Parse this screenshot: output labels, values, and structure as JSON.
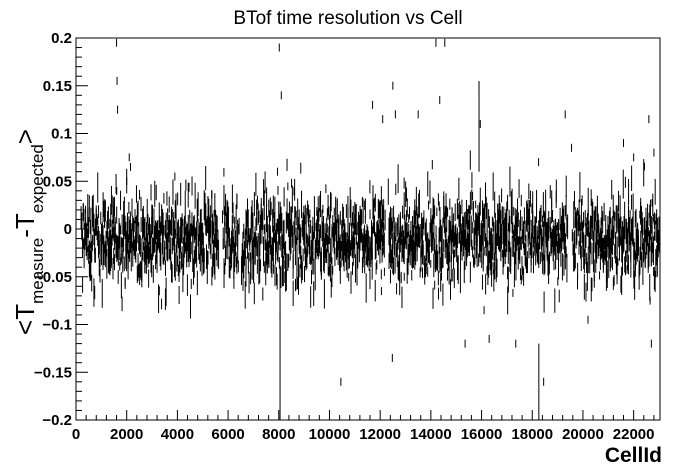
{
  "chart_data": {
    "type": "scatter",
    "title": "BTof time resolution vs Cell",
    "xlabel": "CellId",
    "ylabel": {
      "open": "<T",
      "sub1": "measure",
      "dash": "-T",
      "sub2": "expected",
      "close": ">"
    },
    "xlim": [
      0,
      23040
    ],
    "ylim": [
      -0.2,
      0.2
    ],
    "xticks": [
      "0",
      "2000",
      "4000",
      "6000",
      "8000",
      "10000",
      "12000",
      "14000",
      "16000",
      "18000",
      "20000",
      "22000"
    ],
    "yticks": [
      "0.2",
      "0.15",
      "0.1",
      "0.05",
      "0",
      "−0.05",
      "−0.1",
      "−0.15",
      "−0.2"
    ],
    "grid": false,
    "legend": "none",
    "band": {
      "mean": -0.01,
      "typical_range": [
        -0.045,
        0.035
      ]
    },
    "gaps": [
      [
        5600,
        5750
      ],
      [
        6400,
        6500
      ],
      [
        12150,
        12300
      ],
      [
        19350,
        19550
      ]
    ],
    "outliers": [
      {
        "x": 1600,
        "y": 0.195
      },
      {
        "x": 1620,
        "y": 0.155
      },
      {
        "x": 1640,
        "y": 0.125
      },
      {
        "x": 2100,
        "y": 0.075
      },
      {
        "x": 2150,
        "y": 0.065
      },
      {
        "x": 8020,
        "y": 0.19
      },
      {
        "x": 8100,
        "y": 0.14
      },
      {
        "x": 8050,
        "y": -0.09
      },
      {
        "x": 10450,
        "y": -0.16
      },
      {
        "x": 11700,
        "y": 0.13
      },
      {
        "x": 12050,
        "y": -0.065
      },
      {
        "x": 12100,
        "y": 0.115
      },
      {
        "x": 12500,
        "y": 0.15
      },
      {
        "x": 12600,
        "y": 0.12
      },
      {
        "x": 12480,
        "y": -0.135
      },
      {
        "x": 12950,
        "y": -0.05
      },
      {
        "x": 13500,
        "y": 0.12
      },
      {
        "x": 14200,
        "y": 0.195
      },
      {
        "x": 14350,
        "y": 0.135
      },
      {
        "x": 14550,
        "y": 0.195
      },
      {
        "x": 15350,
        "y": -0.12
      },
      {
        "x": 15900,
        "y": 0.15
      },
      {
        "x": 15950,
        "y": 0.11
      },
      {
        "x": 16100,
        "y": -0.085
      },
      {
        "x": 16300,
        "y": -0.115
      },
      {
        "x": 17350,
        "y": -0.12
      },
      {
        "x": 18250,
        "y": 0.07
      },
      {
        "x": 18450,
        "y": -0.16
      },
      {
        "x": 19300,
        "y": 0.12
      },
      {
        "x": 19550,
        "y": 0.085
      },
      {
        "x": 20200,
        "y": -0.095
      },
      {
        "x": 21600,
        "y": 0.09
      },
      {
        "x": 22000,
        "y": 0.075
      },
      {
        "x": 22600,
        "y": 0.115
      },
      {
        "x": 22700,
        "y": -0.12
      },
      {
        "x": 22800,
        "y": 0.08
      },
      {
        "x": 22650,
        "y": -0.075
      },
      {
        "x": 2000,
        "y": 0.05
      },
      {
        "x": 3900,
        "y": 0.055
      },
      {
        "x": 7950,
        "y": 0.06
      }
    ],
    "spikes": [
      {
        "x": 8050,
        "y1": -0.2,
        "y2": -0.04
      },
      {
        "x": 15900,
        "y1": 0.06,
        "y2": 0.155
      },
      {
        "x": 18260,
        "y1": -0.2,
        "y2": -0.12
      }
    ]
  }
}
